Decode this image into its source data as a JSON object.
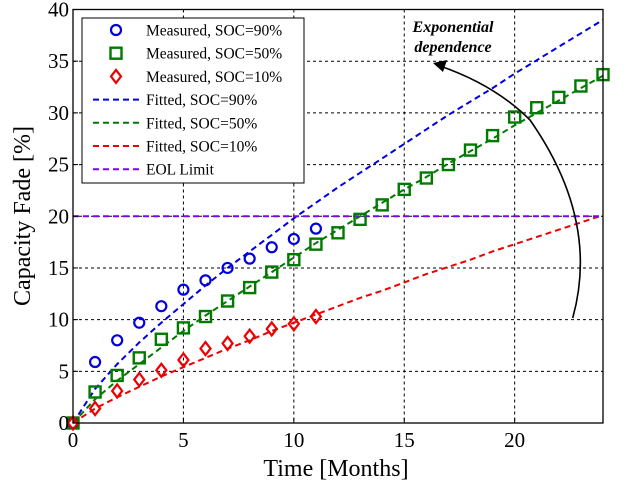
{
  "chart_data": {
    "type": "scatter",
    "title": "",
    "xlabel": "Time [Months]",
    "ylabel": "Capacity Fade [%]",
    "xlim": [
      0,
      24
    ],
    "ylim": [
      0,
      40
    ],
    "xticks": [
      0,
      5,
      10,
      15,
      20
    ],
    "yticks": [
      0,
      5,
      10,
      15,
      20,
      25,
      30,
      35,
      40
    ],
    "grid": true,
    "legend_position": "top-left",
    "series": [
      {
        "name": "Measured, SOC=90%",
        "kind": "marker",
        "marker": "circle",
        "color": "#0000E0",
        "x": [
          0,
          1,
          2,
          3,
          4,
          5,
          6,
          7,
          8,
          9,
          10,
          11
        ],
        "y": [
          0,
          5.9,
          8.0,
          9.7,
          11.3,
          12.9,
          13.8,
          15.0,
          15.9,
          17.0,
          17.8,
          18.8
        ]
      },
      {
        "name": "Measured, SOC=50%",
        "kind": "marker",
        "marker": "square",
        "color": "#007A00",
        "x": [
          0,
          1,
          2,
          3,
          4,
          5,
          6,
          7,
          8,
          9,
          10,
          11,
          12,
          13,
          14,
          15,
          16,
          17,
          18,
          19,
          20,
          21,
          22,
          23,
          24
        ],
        "y": [
          0,
          3.0,
          4.6,
          6.3,
          8.1,
          9.2,
          10.3,
          11.8,
          13.1,
          14.6,
          15.8,
          17.3,
          18.4,
          19.7,
          21.1,
          22.6,
          23.7,
          25.0,
          26.4,
          27.8,
          29.6,
          30.5,
          31.5,
          32.6,
          33.7
        ]
      },
      {
        "name": "Measured, SOC=10%",
        "kind": "marker",
        "marker": "diamond",
        "color": "#EE0000",
        "x": [
          0,
          1,
          2,
          3,
          4,
          5,
          6,
          7,
          8,
          9,
          10,
          11
        ],
        "y": [
          0,
          1.4,
          3.1,
          4.2,
          5.1,
          6.1,
          7.2,
          7.7,
          8.4,
          9.1,
          9.6,
          10.3
        ]
      },
      {
        "name": "Fitted, SOC=90%",
        "kind": "line",
        "color": "#0000E0",
        "x": [
          0,
          1,
          2,
          3,
          4,
          5,
          6,
          7,
          8,
          9,
          10,
          11,
          12,
          13,
          14,
          15,
          16,
          17,
          18,
          19,
          20,
          21,
          22,
          23,
          24
        ],
        "y": [
          0,
          3.3,
          5.7,
          7.8,
          9.7,
          11.5,
          13.3,
          15.0,
          16.6,
          18.2,
          19.8,
          21.3,
          22.8,
          24.2,
          25.6,
          27.0,
          28.4,
          29.8,
          31.1,
          32.4,
          33.8,
          35.1,
          36.4,
          37.7,
          39.0
        ]
      },
      {
        "name": "Fitted, SOC=50%",
        "kind": "line",
        "color": "#007A00",
        "x": [
          0,
          1,
          2,
          3,
          4,
          5,
          6,
          7,
          8,
          9,
          10,
          11,
          12,
          13,
          14,
          15,
          16,
          17,
          18,
          19,
          20,
          21,
          22,
          23,
          24
        ],
        "y": [
          0,
          2.3,
          4.1,
          5.7,
          7.3,
          8.9,
          10.4,
          11.8,
          13.2,
          14.6,
          16.0,
          17.4,
          18.7,
          20.0,
          21.3,
          22.6,
          23.8,
          25.1,
          26.3,
          27.5,
          28.8,
          30.0,
          31.2,
          32.4,
          33.6
        ]
      },
      {
        "name": "Fitted, SOC=10%",
        "kind": "line",
        "color": "#EE0000",
        "x": [
          0,
          1,
          2,
          3,
          4,
          5,
          6,
          7,
          8,
          9,
          10,
          11,
          12,
          13,
          14,
          15,
          16,
          17,
          18,
          19,
          20,
          21,
          22,
          23,
          24
        ],
        "y": [
          0,
          1.4,
          2.5,
          3.5,
          4.5,
          5.4,
          6.3,
          7.2,
          8.0,
          8.9,
          9.7,
          10.5,
          11.3,
          12.1,
          12.8,
          13.6,
          14.4,
          15.1,
          15.8,
          16.6,
          17.3,
          18.0,
          18.7,
          19.4,
          20.1
        ]
      },
      {
        "name": "EOL Limit",
        "kind": "line",
        "color": "#7F00FF",
        "x": [
          0,
          24
        ],
        "y": [
          20,
          20
        ]
      }
    ],
    "annotations": [
      {
        "text_lines": [
          "Exponential",
          "dependence"
        ],
        "arrow": "curved arrow sweeping from the SOC=10% curve up to the SOC=90% curve"
      }
    ]
  }
}
